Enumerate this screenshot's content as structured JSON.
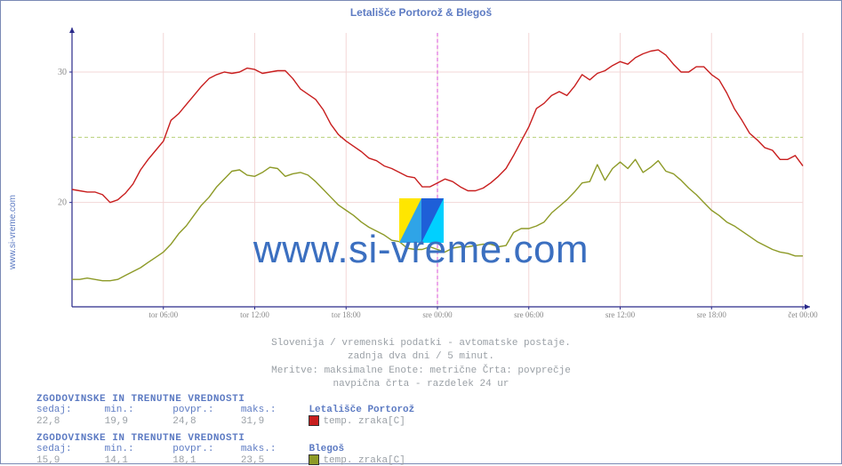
{
  "site": {
    "label": "www.si-vreme.com",
    "url_text": "www.si-vreme.com"
  },
  "chart": {
    "title": "Letališče Portorož & Blegoš",
    "type": "line",
    "y": {
      "min": 12,
      "max": 33,
      "ticks": [
        20,
        30
      ],
      "hline": 25,
      "hline_color": "#b7d17a",
      "hline_dash": "4 3"
    },
    "x": {
      "min": 0,
      "max": 48,
      "ticks": [
        {
          "pos": 6,
          "label": "tor 06:00"
        },
        {
          "pos": 12,
          "label": "tor 12:00"
        },
        {
          "pos": 18,
          "label": "tor 18:00"
        },
        {
          "pos": 24,
          "label": "sre 00:00"
        },
        {
          "pos": 30,
          "label": "sre 06:00"
        },
        {
          "pos": 36,
          "label": "sre 12:00"
        },
        {
          "pos": 42,
          "label": "sre 18:00"
        },
        {
          "pos": 48,
          "label": "čet 00:00"
        }
      ],
      "vline": 24,
      "vline_color": "#d850d8",
      "vline_dash": "4 3"
    },
    "grid_color": "#f3d7d7",
    "axis_color": "#2a2a8a",
    "background": "#ffffff",
    "series": {
      "portoroz": {
        "name": "Letališče Portorož",
        "param": "temp. zraka[C]",
        "color": "#c81e1e",
        "width": 1.4,
        "y": [
          21.0,
          20.9,
          20.8,
          20.8,
          20.6,
          20.0,
          20.2,
          20.7,
          21.4,
          22.5,
          23.3,
          24.0,
          24.7,
          26.3,
          26.8,
          27.5,
          28.2,
          28.9,
          29.5,
          29.8,
          30.0,
          29.9,
          30.0,
          30.3,
          30.2,
          29.9,
          30.0,
          30.1,
          30.1,
          29.5,
          28.7,
          28.3,
          27.9,
          27.1,
          26.0,
          25.2,
          24.7,
          24.3,
          23.9,
          23.4,
          23.2,
          22.8,
          22.6,
          22.3,
          22.0,
          21.9,
          21.2,
          21.2,
          21.5,
          21.8,
          21.6,
          21.2,
          20.9,
          20.9,
          21.1,
          21.5,
          22.0,
          22.6,
          23.6,
          24.7,
          25.8,
          27.2,
          27.6,
          28.2,
          28.5,
          28.2,
          28.9,
          29.8,
          29.4,
          29.9,
          30.1,
          30.5,
          30.8,
          30.6,
          31.1,
          31.4,
          31.6,
          31.7,
          31.3,
          30.6,
          30.0,
          30.0,
          30.4,
          30.4,
          29.8,
          29.4,
          28.4,
          27.2,
          26.3,
          25.3,
          24.8,
          24.2,
          24.0,
          23.3,
          23.3,
          23.6,
          22.8
        ]
      },
      "blegos": {
        "name": "Blegoš",
        "param": "temp. zraka[C]",
        "color": "#8d9a27",
        "width": 1.4,
        "y": [
          14.1,
          14.1,
          14.2,
          14.1,
          14.0,
          14.0,
          14.1,
          14.4,
          14.7,
          15.0,
          15.4,
          15.8,
          16.2,
          16.8,
          17.6,
          18.2,
          19.0,
          19.8,
          20.4,
          21.2,
          21.8,
          22.4,
          22.5,
          22.1,
          22.0,
          22.3,
          22.7,
          22.6,
          22.0,
          22.2,
          22.3,
          22.1,
          21.6,
          21.0,
          20.4,
          19.8,
          19.4,
          19.0,
          18.5,
          18.1,
          17.8,
          17.5,
          17.1,
          17.0,
          16.5,
          16.4,
          16.4,
          16.6,
          16.4,
          16.2,
          16.5,
          16.6,
          16.6,
          16.7,
          16.8,
          16.8,
          16.6,
          16.7,
          17.7,
          18.0,
          18.0,
          18.2,
          18.5,
          19.2,
          19.7,
          20.2,
          20.8,
          21.5,
          21.6,
          22.9,
          21.7,
          22.6,
          23.1,
          22.6,
          23.3,
          22.3,
          22.7,
          23.2,
          22.4,
          22.2,
          21.7,
          21.1,
          20.6,
          20.0,
          19.4,
          19.0,
          18.5,
          18.2,
          17.8,
          17.4,
          17.0,
          16.7,
          16.4,
          16.2,
          16.1,
          15.9,
          15.9
        ]
      }
    }
  },
  "subtitles": [
    "Slovenija / vremenski podatki - avtomatske postaje.",
    "zadnja dva dni / 5 minut.",
    "Meritve: maksimalne  Enote: metrične  Črta: povprečje",
    "navpična črta - razdelek 24 ur"
  ],
  "stats": {
    "header": "ZGODOVINSKE IN TRENUTNE VREDNOSTI",
    "labels": {
      "sedaj": "sedaj:",
      "min": "min.:",
      "povpr": "povpr.:",
      "maks": "maks.:"
    },
    "series": [
      {
        "key": "portoroz",
        "sedaj": "22,8",
        "min": "19,9",
        "povpr": "24,8",
        "maks": "31,9"
      },
      {
        "key": "blegos",
        "sedaj": "15,9",
        "min": "14,1",
        "povpr": "18,1",
        "maks": "23,5"
      }
    ]
  }
}
